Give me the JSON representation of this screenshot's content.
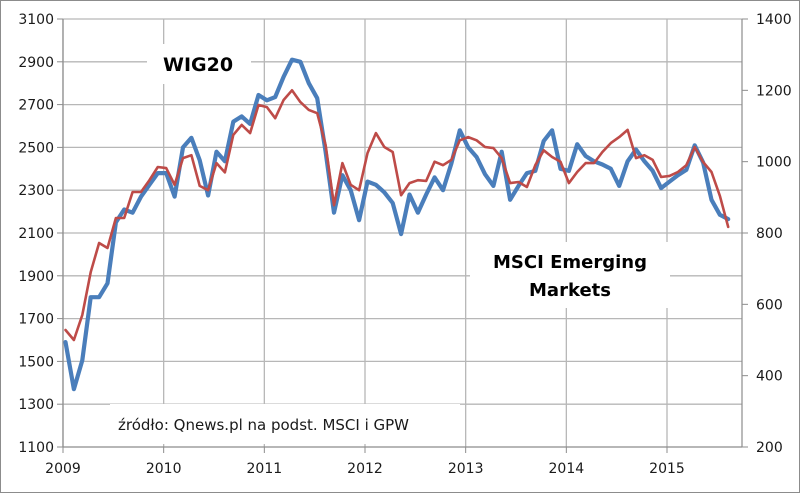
{
  "chart_data": {
    "type": "line",
    "title": "",
    "xlabel": "",
    "ylabel": "",
    "x_ticks": [
      "2009",
      "2010",
      "2011",
      "2012",
      "2013",
      "2014",
      "2015"
    ],
    "x_range": [
      2009,
      2015.75
    ],
    "ylim_left": [
      1100,
      3100
    ],
    "ylim_right": [
      200,
      1400
    ],
    "y_ticks_left": [
      "1100",
      "1300",
      "1500",
      "1700",
      "1900",
      "2100",
      "2300",
      "2500",
      "2700",
      "2900",
      "3100"
    ],
    "y_ticks_right": [
      "200",
      "400",
      "600",
      "800",
      "1000",
      "1200",
      "1400"
    ],
    "grid": true,
    "colors": {
      "wig20": "#4A7EBB",
      "msci": "#BE4B48",
      "grid": "#b7b7b7",
      "axis": "#8c8c8c"
    },
    "annotations": {
      "wig20_label": "WIG20",
      "msci_label_line1": "MSCI Emerging",
      "msci_label_line2": "Markets",
      "source": "źródło: Qnews.pl na podst. MSCI i GPW"
    },
    "series": [
      {
        "name": "WIG20",
        "axis": "left",
        "start": "2009-01",
        "values": [
          1590,
          1370,
          1505,
          1800,
          1800,
          1865,
          2150,
          2210,
          2195,
          2270,
          2325,
          2380,
          2380,
          2270,
          2500,
          2545,
          2440,
          2275,
          2480,
          2435,
          2620,
          2645,
          2610,
          2745,
          2720,
          2735,
          2830,
          2910,
          2900,
          2800,
          2730,
          2480,
          2195,
          2370,
          2300,
          2160,
          2340,
          2325,
          2290,
          2240,
          2095,
          2280,
          2195,
          2280,
          2360,
          2300,
          2425,
          2580,
          2500,
          2455,
          2375,
          2320,
          2480,
          2255,
          2320,
          2380,
          2390,
          2530,
          2580,
          2400,
          2390,
          2515,
          2460,
          2435,
          2420,
          2400,
          2320,
          2435,
          2490,
          2435,
          2390,
          2310,
          2340,
          2370,
          2395,
          2510,
          2430,
          2255,
          2185,
          2165
        ]
      },
      {
        "name": "MSCI Emerging Markets",
        "axis": "right",
        "start": "2009-01",
        "values": [
          528,
          500,
          570,
          690,
          772,
          758,
          842,
          842,
          915,
          915,
          948,
          985,
          982,
          935,
          1010,
          1018,
          932,
          920,
          996,
          970,
          1075,
          1103,
          1080,
          1159,
          1153,
          1122,
          1173,
          1200,
          1167,
          1145,
          1136,
          1047,
          878,
          996,
          935,
          920,
          1024,
          1080,
          1041,
          1027,
          906,
          940,
          948,
          946,
          1000,
          990,
          1005,
          1060,
          1069,
          1060,
          1041,
          1038,
          1010,
          940,
          943,
          929,
          990,
          1032,
          1013,
          1000,
          940,
          971,
          996,
          996,
          1027,
          1052,
          1069,
          1089,
          1010,
          1018,
          1005,
          957,
          960,
          971,
          990,
          1041,
          999,
          971,
          904,
          817
        ]
      }
    ]
  }
}
